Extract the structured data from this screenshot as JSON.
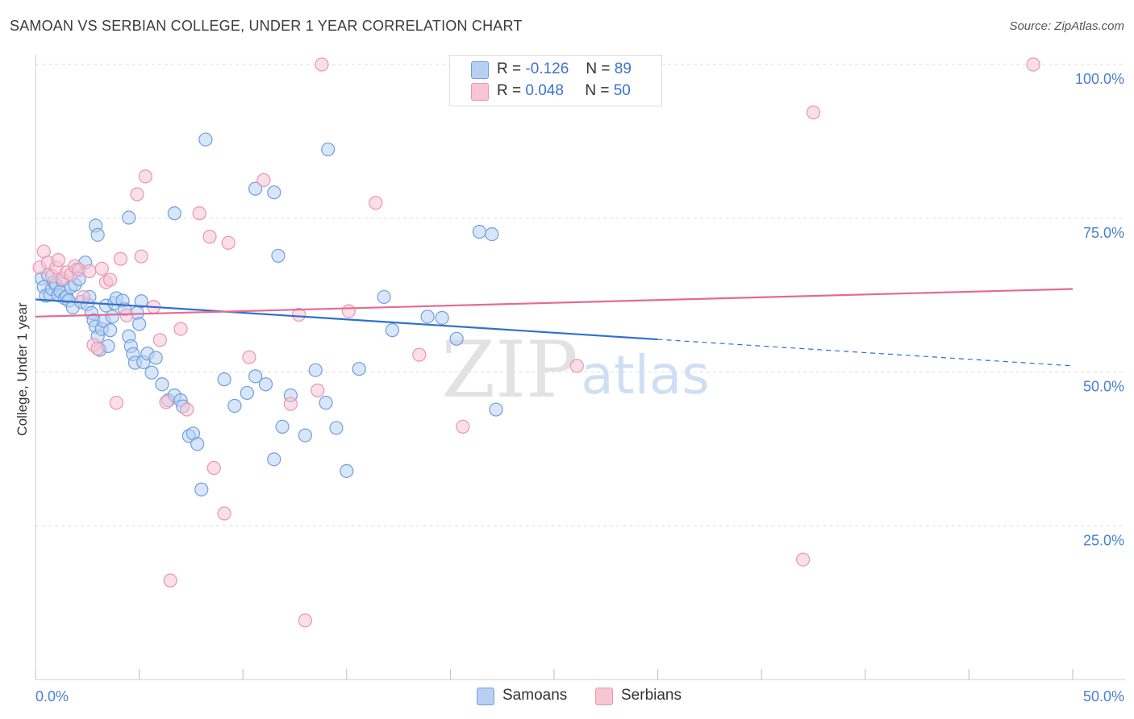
{
  "header": {
    "title": "SAMOAN VS SERBIAN COLLEGE, UNDER 1 YEAR CORRELATION CHART",
    "source": "Source: ZipAtlas.com"
  },
  "watermark": {
    "zip": "ZIP",
    "atlas": "atlas"
  },
  "legend_top": {
    "rows": [
      {
        "r_label": "R =",
        "r_value": "-0.126",
        "n_label": "N =",
        "n_value": "89"
      },
      {
        "r_label": "R =",
        "r_value": "0.048",
        "n_label": "N =",
        "n_value": "50"
      }
    ]
  },
  "legend_bottom": {
    "samoans": "Samoans",
    "serbians": "Serbians"
  },
  "colors": {
    "samoan_fill": "#b8d1f3",
    "samoan_stroke": "#6f9ee0",
    "samoan_line": "#2f6fcf",
    "serbian_fill": "#f8c5d5",
    "serbian_stroke": "#eb94b2",
    "serbian_line": "#e46a94",
    "tick": "#4a7fd0",
    "grid": "#dddddd"
  },
  "chart_data": {
    "type": "scatter",
    "title": "SAMOAN VS SERBIAN COLLEGE, UNDER 1 YEAR CORRELATION CHART",
    "xlabel": "",
    "ylabel": "College, Under 1 year",
    "xlim": [
      0,
      50
    ],
    "ylim": [
      0,
      100
    ],
    "x_ticks": [
      0,
      5,
      10,
      15,
      20,
      25,
      30,
      35,
      40,
      45,
      50
    ],
    "x_tick_labels": {
      "0": "0.0%",
      "50": "50.0%"
    },
    "y_ticks": [
      25,
      50,
      75,
      100
    ],
    "y_tick_labels": [
      "25.0%",
      "50.0%",
      "75.0%",
      "100.0%"
    ],
    "series": [
      {
        "name": "Samoans",
        "r": -0.126,
        "n": 89,
        "trend": {
          "x0": 0,
          "y0": 61.8,
          "x1": 30,
          "y1": 55.3,
          "dash_x1": 50,
          "dash_y1": 51.0
        },
        "points": [
          [
            0.3,
            65.2
          ],
          [
            0.4,
            63.8
          ],
          [
            0.5,
            62.4
          ],
          [
            0.6,
            65.8
          ],
          [
            0.7,
            62.6
          ],
          [
            0.8,
            63.5
          ],
          [
            0.9,
            64.6
          ],
          [
            1.0,
            64.2
          ],
          [
            1.1,
            62.5
          ],
          [
            1.2,
            63.1
          ],
          [
            1.3,
            64.9
          ],
          [
            1.4,
            62.0
          ],
          [
            1.5,
            62.3
          ],
          [
            1.6,
            61.6
          ],
          [
            1.7,
            63.8
          ],
          [
            1.8,
            60.5
          ],
          [
            1.9,
            64.2
          ],
          [
            2.0,
            66.7
          ],
          [
            2.1,
            65.1
          ],
          [
            2.2,
            61.4
          ],
          [
            2.4,
            67.8
          ],
          [
            2.5,
            61.0
          ],
          [
            2.6,
            62.2
          ],
          [
            2.7,
            59.6
          ],
          [
            2.8,
            58.4
          ],
          [
            2.9,
            57.4
          ],
          [
            3.0,
            55.8
          ],
          [
            3.1,
            53.6
          ],
          [
            3.2,
            57.0
          ],
          [
            3.3,
            58.3
          ],
          [
            3.4,
            60.8
          ],
          [
            3.5,
            54.2
          ],
          [
            3.6,
            56.8
          ],
          [
            3.7,
            59.0
          ],
          [
            3.8,
            61.2
          ],
          [
            3.9,
            62.0
          ],
          [
            4.2,
            61.6
          ],
          [
            4.3,
            60.2
          ],
          [
            4.5,
            55.8
          ],
          [
            4.6,
            54.2
          ],
          [
            4.7,
            52.9
          ],
          [
            4.8,
            51.5
          ],
          [
            4.9,
            59.6
          ],
          [
            5.0,
            57.8
          ],
          [
            5.1,
            61.5
          ],
          [
            5.2,
            51.6
          ],
          [
            5.4,
            53.0
          ],
          [
            5.6,
            49.9
          ],
          [
            5.8,
            52.3
          ],
          [
            6.1,
            48.0
          ],
          [
            6.4,
            45.4
          ],
          [
            6.7,
            46.2
          ],
          [
            7.0,
            45.4
          ],
          [
            7.1,
            44.4
          ],
          [
            7.4,
            39.6
          ],
          [
            7.6,
            40.0
          ],
          [
            7.8,
            38.3
          ],
          [
            8.0,
            30.9
          ],
          [
            9.1,
            48.8
          ],
          [
            9.6,
            44.5
          ],
          [
            10.2,
            46.6
          ],
          [
            10.6,
            49.3
          ],
          [
            11.1,
            48.0
          ],
          [
            11.5,
            35.8
          ],
          [
            11.9,
            41.1
          ],
          [
            12.3,
            46.2
          ],
          [
            13.0,
            39.7
          ],
          [
            13.5,
            50.3
          ],
          [
            14.0,
            45.0
          ],
          [
            14.5,
            40.9
          ],
          [
            15.0,
            33.9
          ],
          [
            15.6,
            50.5
          ],
          [
            16.8,
            62.2
          ],
          [
            17.2,
            56.8
          ],
          [
            18.9,
            59.0
          ],
          [
            19.6,
            58.8
          ],
          [
            20.3,
            55.4
          ],
          [
            22.2,
            43.9
          ],
          [
            21.4,
            72.8
          ],
          [
            22.0,
            72.4
          ],
          [
            8.2,
            87.8
          ],
          [
            14.1,
            86.2
          ],
          [
            10.6,
            79.8
          ],
          [
            11.5,
            79.2
          ],
          [
            4.5,
            75.1
          ],
          [
            6.7,
            75.8
          ],
          [
            2.9,
            73.8
          ],
          [
            3.0,
            72.3
          ],
          [
            11.7,
            68.9
          ]
        ]
      },
      {
        "name": "Serbians",
        "r": 0.048,
        "n": 50,
        "trend": {
          "x0": 0,
          "y0": 59.0,
          "x1": 50,
          "y1": 63.5
        },
        "points": [
          [
            0.2,
            67.0
          ],
          [
            0.4,
            69.6
          ],
          [
            0.6,
            67.8
          ],
          [
            0.8,
            65.6
          ],
          [
            1.0,
            67.0
          ],
          [
            1.1,
            68.2
          ],
          [
            1.3,
            65.2
          ],
          [
            1.5,
            66.2
          ],
          [
            1.7,
            65.8
          ],
          [
            1.9,
            67.2
          ],
          [
            2.1,
            66.6
          ],
          [
            2.3,
            62.2
          ],
          [
            2.6,
            66.4
          ],
          [
            2.8,
            54.4
          ],
          [
            3.0,
            53.8
          ],
          [
            3.2,
            66.8
          ],
          [
            3.4,
            64.6
          ],
          [
            3.6,
            65.0
          ],
          [
            3.9,
            45.0
          ],
          [
            4.1,
            68.4
          ],
          [
            4.4,
            59.2
          ],
          [
            4.9,
            78.9
          ],
          [
            5.1,
            68.8
          ],
          [
            5.3,
            81.8
          ],
          [
            5.7,
            60.6
          ],
          [
            6.0,
            55.2
          ],
          [
            6.3,
            45.1
          ],
          [
            6.5,
            16.1
          ],
          [
            7.0,
            57.0
          ],
          [
            7.3,
            43.9
          ],
          [
            7.9,
            75.8
          ],
          [
            8.4,
            72.0
          ],
          [
            8.6,
            34.4
          ],
          [
            9.1,
            27.0
          ],
          [
            9.3,
            71.0
          ],
          [
            10.3,
            52.4
          ],
          [
            11.0,
            81.2
          ],
          [
            12.3,
            44.8
          ],
          [
            12.7,
            59.3
          ],
          [
            13.0,
            9.6
          ],
          [
            13.6,
            47.0
          ],
          [
            13.8,
            100.0
          ],
          [
            15.1,
            59.9
          ],
          [
            16.4,
            77.5
          ],
          [
            18.5,
            52.8
          ],
          [
            20.6,
            41.1
          ],
          [
            26.1,
            51.0
          ],
          [
            37.5,
            92.2
          ],
          [
            37.0,
            19.5
          ],
          [
            48.1,
            100.0
          ]
        ]
      }
    ]
  }
}
